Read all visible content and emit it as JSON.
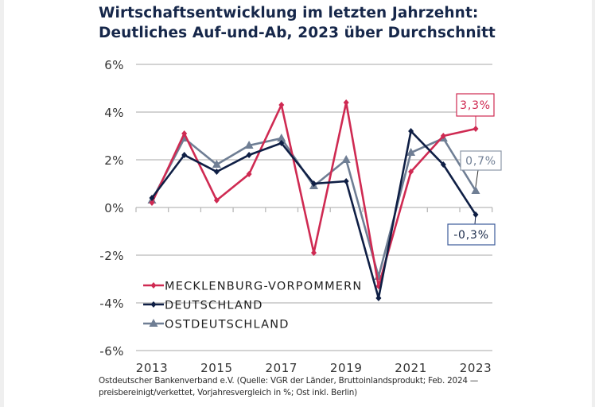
{
  "title": {
    "line1": "Wirtschaftsentwicklung im letzten Jahrzehnt:",
    "line2": "Deutliches Auf-und-Ab, 2023 über Durchschnitt"
  },
  "footer": {
    "line1": "Ostdeutscher Bankenverband e.V. (Quelle: VGR der Länder, Bruttoinlandsprodukt; Feb. 2024 —",
    "line2": "preisbereinigt/verkettet, Vorjahresvergleich in %; Ost inkl. Berlin)"
  },
  "colors": {
    "title": "#16274a",
    "grid": "#b9b9b9",
    "mv": "#cf2a52",
    "de": "#0f1f45",
    "ost": "#6f7e94"
  },
  "chart_data": {
    "type": "line",
    "title": "Wirtschaftsentwicklung im letzten Jahrzehnt: Deutliches Auf-und-Ab, 2023 über Durchschnitt",
    "xlabel": "",
    "ylabel": "",
    "x": [
      2013,
      2014,
      2015,
      2016,
      2017,
      2018,
      2019,
      2020,
      2021,
      2022,
      2023
    ],
    "x_tick_labels": [
      "2013",
      "2015",
      "2017",
      "2019",
      "2021",
      "2023"
    ],
    "y_tick_labels": [
      "6%",
      "4%",
      "2%",
      "0%",
      "-2%",
      "-4%",
      "-6%"
    ],
    "ylim": [
      -6,
      6
    ],
    "grid": true,
    "legend_position": "lower-left",
    "series": [
      {
        "name": "MECKLENBURG-VORPOMMERN",
        "key": "mv",
        "marker": "diamond",
        "values": [
          0.2,
          3.1,
          0.3,
          1.4,
          4.3,
          -1.9,
          4.4,
          -3.3,
          1.5,
          3.0,
          3.3
        ]
      },
      {
        "name": "DEUTSCHLAND",
        "key": "de",
        "marker": "diamond",
        "values": [
          0.4,
          2.2,
          1.5,
          2.2,
          2.7,
          1.0,
          1.1,
          -3.8,
          3.2,
          1.8,
          -0.3
        ]
      },
      {
        "name": "OSTDEUTSCHLAND",
        "key": "ost",
        "marker": "triangle",
        "values": [
          0.3,
          2.9,
          1.8,
          2.6,
          2.9,
          0.9,
          2.0,
          -2.9,
          2.3,
          2.9,
          0.7
        ]
      }
    ],
    "annotations": [
      {
        "series": "mv",
        "x": 2023,
        "text": "3,3%"
      },
      {
        "series": "ost",
        "x": 2023,
        "text": "0,7%"
      },
      {
        "series": "de",
        "x": 2023,
        "text": "-0,3%"
      }
    ]
  }
}
